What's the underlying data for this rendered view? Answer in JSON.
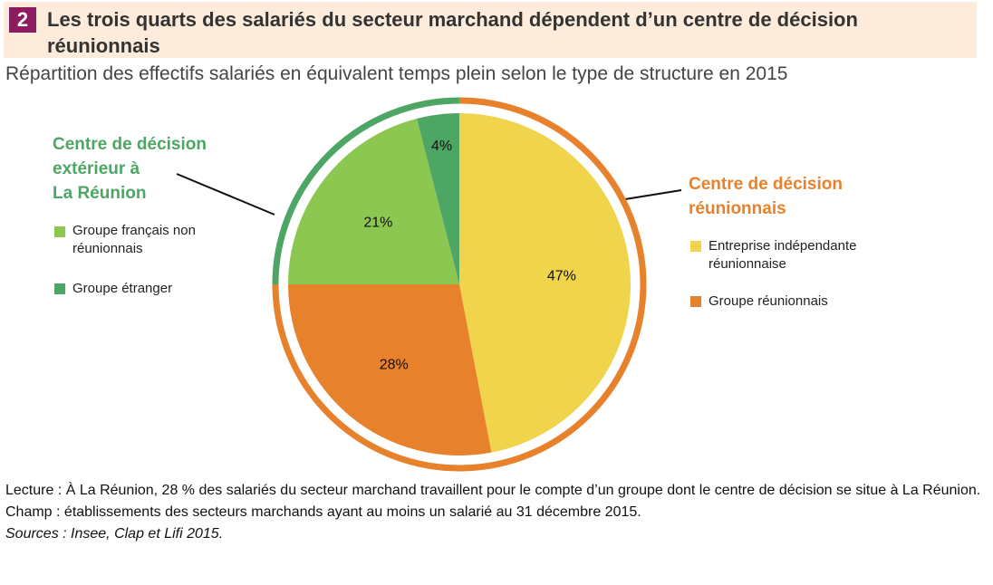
{
  "header": {
    "number": "2",
    "title": "Les trois quarts des salariés du secteur marchand dépendent d’un centre de décision réunionnais"
  },
  "subtitle": "Répartition des effectifs salariés en équivalent temps plein selon le type de structure en 2015",
  "chart_data": {
    "type": "pie",
    "title": "Les trois quarts des salariés du secteur marchand dépendent d’un centre de décision réunionnais",
    "subtitle": "Répartition des effectifs salariés en équivalent temps plein selon le type de structure en 2015",
    "slices": [
      {
        "name": "Entreprise indépendante réunionnaise",
        "value": 47,
        "label": "47%",
        "color": "#f0d44c",
        "group": "Centre de décision réunionnais"
      },
      {
        "name": "Groupe réunionnais",
        "value": 28,
        "label": "28%",
        "color": "#e8812c",
        "group": "Centre de décision réunionnais"
      },
      {
        "name": "Groupe français non réunionnais",
        "value": 21,
        "label": "21%",
        "color": "#8cc751",
        "group": "Centre de décision extérieur à La Réunion"
      },
      {
        "name": "Groupe étranger",
        "value": 4,
        "label": "4%",
        "color": "#4ea664",
        "group": "Centre de décision extérieur à La Réunion"
      }
    ],
    "groups": [
      {
        "name": "Centre de décision extérieur à La Réunion",
        "color": "#4ea664"
      },
      {
        "name": "Centre de décision réunionnais",
        "color": "#e8812c"
      }
    ],
    "legend": "left and right"
  },
  "left_group": {
    "line1": "Centre de décision",
    "line2": "extérieur à",
    "line3": "La Réunion"
  },
  "right_group": {
    "line1": "Centre de décision",
    "line2": "réunionnais"
  },
  "legend": {
    "fr1": "Groupe français non",
    "fr2": "réunionnais",
    "etr": "Groupe étranger",
    "ind1": "Entreprise indépendante",
    "ind2": "réunionnaise",
    "reu": "Groupe réunionnais"
  },
  "notes": {
    "lecture": "Lecture : À La Réunion, 28 % des salariés du secteur marchand travaillent pour le compte d’un groupe dont le centre de décision se situe à La Réunion.",
    "champ": "Champ : établissements des secteurs marchands ayant au moins un salarié au 31 décembre 2015.",
    "sources": "Sources : Insee, Clap et Lifi 2015."
  }
}
